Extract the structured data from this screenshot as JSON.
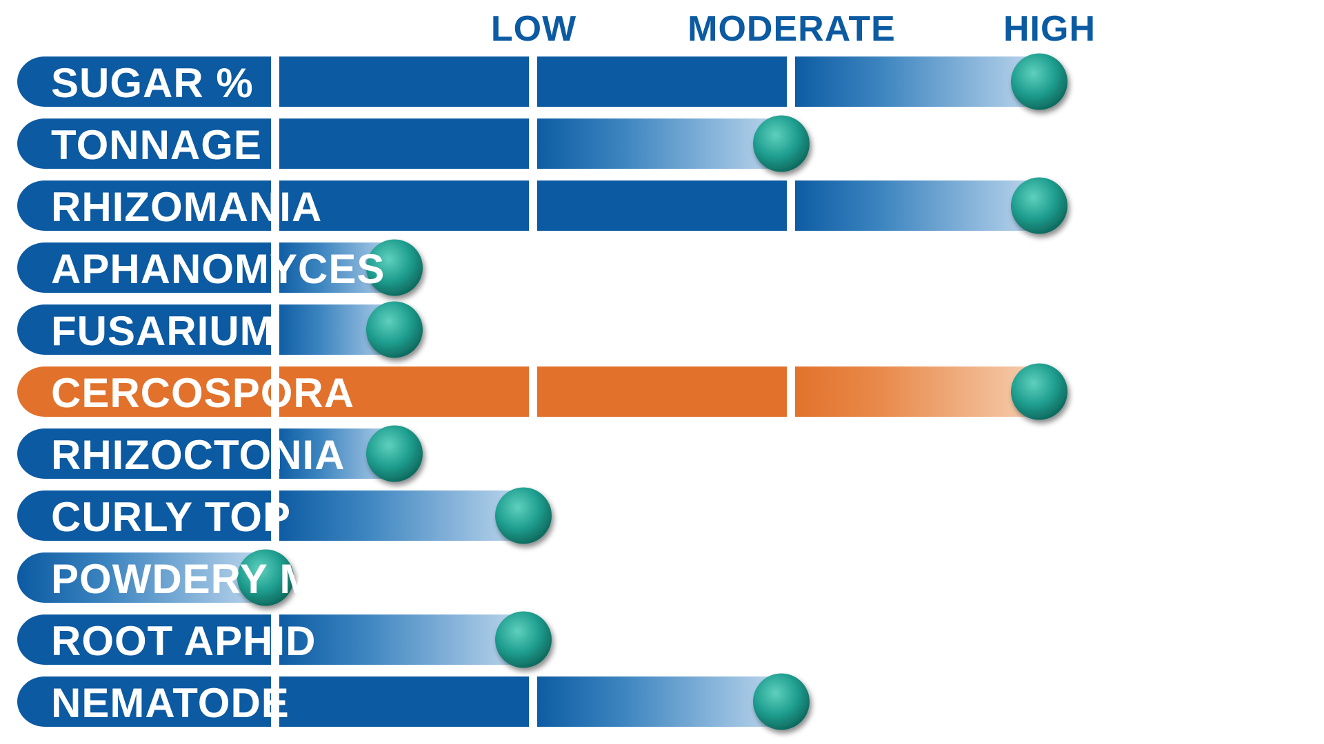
{
  "colors": {
    "blue_dark": "#0b5aa2",
    "blue_mid": "#3d85c0",
    "blue_light": "#c6dcf0",
    "orange_dark": "#e2712b",
    "orange_light": "#f6d3b8",
    "header_text": "#0b5aa2",
    "ball": "#1f9e8f",
    "divider": "#ffffff"
  },
  "chart_data": {
    "type": "bar",
    "orientation": "horizontal",
    "scale_labels": [
      "LOW",
      "MODERATE",
      "HIGH"
    ],
    "scale_max": 4,
    "grid": false,
    "legend": "none",
    "categories": [
      "SUGAR %",
      "TONNAGE",
      "RHIZOMANIA",
      "APHANOMYCES",
      "FUSARIUM",
      "CERCOSPORA",
      "RHIZOCTONIA",
      "CURLY TOP",
      "POWDERY MILDEW",
      "ROOT APHID",
      "NEMATODE"
    ],
    "values": [
      4.0,
      3.0,
      4.0,
      1.5,
      1.5,
      4.0,
      1.5,
      2.0,
      1.0,
      2.0,
      3.0
    ],
    "highlight": "CERCOSPORA",
    "marker": "ball"
  }
}
